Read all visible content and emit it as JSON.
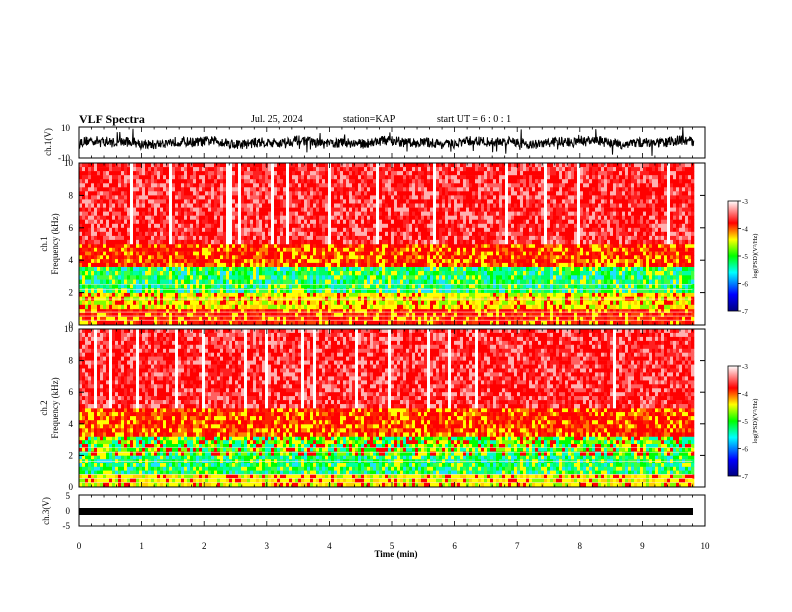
{
  "header": {
    "title": "VLF Spectra",
    "date": "Jul. 25, 2024",
    "station_label": "station=",
    "station": "KAP",
    "start_label": "start UT =",
    "start_time": "6 : 0 : 1"
  },
  "colors": {
    "colormap": [
      "#000080",
      "#0000ff",
      "#00ffff",
      "#00ff00",
      "#ffff00",
      "#ff0000",
      "#ffffff"
    ]
  },
  "chart_data": [
    {
      "type": "line",
      "name": "ch1-waveform",
      "ylabel": "ch.1(V)",
      "ylim": [
        -10,
        10
      ],
      "yticks": [
        "10",
        "-10"
      ],
      "xlim": [
        0,
        10
      ],
      "baseline": 0,
      "amplitude": 4
    },
    {
      "type": "heatmap",
      "name": "ch1-spectrogram",
      "ylabel_top": "ch.1",
      "ylabel": "Frequency (kHz)",
      "ylim": [
        0,
        10
      ],
      "yticks": [
        "0",
        "2",
        "4",
        "6",
        "8",
        "10"
      ],
      "xlim": [
        0,
        9.8
      ],
      "colorbar": {
        "label": "log(PSD)(V²/Hz)",
        "range": [
          -7,
          -3
        ],
        "ticks": [
          "-3",
          "-4",
          "-5",
          "-6",
          "-7"
        ]
      },
      "bands": [
        {
          "from_khz": 0,
          "to_khz": 1,
          "level": "red"
        },
        {
          "from_khz": 1,
          "to_khz": 2,
          "level": "yellow"
        },
        {
          "from_khz": 2,
          "to_khz": 3.6,
          "level": "green"
        },
        {
          "from_khz": 3.6,
          "to_khz": 5,
          "level": "yellow-red"
        },
        {
          "from_khz": 5,
          "to_khz": 10,
          "level": "red-white"
        }
      ]
    },
    {
      "type": "heatmap",
      "name": "ch2-spectrogram",
      "ylabel_top": "ch.2",
      "ylabel": "Frequency (kHz)",
      "ylim": [
        0,
        10
      ],
      "yticks": [
        "0",
        "2",
        "4",
        "6",
        "8",
        "10"
      ],
      "xlim": [
        0,
        9.8
      ],
      "colorbar": {
        "label": "log(PSD)(V²/Hz)",
        "range": [
          -7,
          -3
        ],
        "ticks": [
          "-3",
          "-4",
          "-5",
          "-6",
          "-7"
        ]
      },
      "bands": [
        {
          "from_khz": 0,
          "to_khz": 0.8,
          "level": "yellow"
        },
        {
          "from_khz": 0.8,
          "to_khz": 2,
          "level": "green"
        },
        {
          "from_khz": 2,
          "to_khz": 3.2,
          "level": "green-yellow"
        },
        {
          "from_khz": 3.2,
          "to_khz": 5,
          "level": "yellow-red"
        },
        {
          "from_khz": 5,
          "to_khz": 10,
          "level": "red-white"
        }
      ]
    },
    {
      "type": "line",
      "name": "ch3-waveform",
      "ylabel": "ch.3(V)",
      "ylim": [
        -5,
        5
      ],
      "yticks": [
        "5",
        "0",
        "-5"
      ],
      "xlim": [
        0,
        9.8
      ],
      "baseline": 0,
      "amplitude": 0.5
    }
  ],
  "xaxis": {
    "label": "Time (min)",
    "ticks": [
      "0",
      "1",
      "2",
      "3",
      "4",
      "5",
      "6",
      "7",
      "8",
      "9",
      "10"
    ]
  }
}
